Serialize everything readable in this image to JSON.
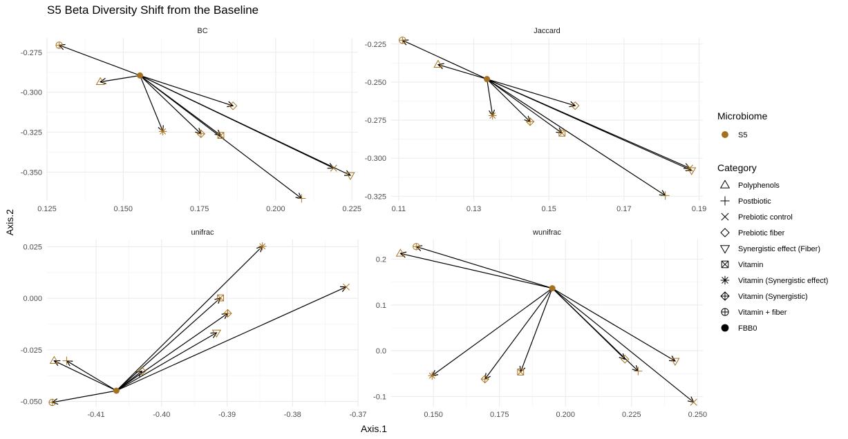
{
  "title": "S5 Beta Diversity Shift from the Baseline",
  "xlabel": "Axis.1",
  "ylabel": "Axis.2",
  "colors": {
    "s5": "#A6711F",
    "grid_major": "#EBEBEB",
    "grid_minor": "#F4F4F4",
    "arrow": "#000000"
  },
  "legend": {
    "microbiome_title": "Microbiome",
    "microbiome_items": [
      {
        "label": "S5",
        "shape": "filled-circle"
      }
    ],
    "category_title": "Category",
    "category_items": [
      {
        "label": "Polyphenols",
        "shape": "triangle-up"
      },
      {
        "label": "Postbiotic",
        "shape": "plus"
      },
      {
        "label": "Prebiotic control",
        "shape": "cross"
      },
      {
        "label": "Prebiotic fiber",
        "shape": "diamond"
      },
      {
        "label": "Synergistic effect (Fiber)",
        "shape": "triangle-down"
      },
      {
        "label": "Vitamin",
        "shape": "square-cross"
      },
      {
        "label": "Vitamin (Synergistic effect)",
        "shape": "asterisk"
      },
      {
        "label": "Vitamin (Synergistic)",
        "shape": "diamond-plus"
      },
      {
        "label": "Vitamin + fiber",
        "shape": "circle-plus"
      },
      {
        "label": "FBB0",
        "shape": "filled-circle"
      }
    ]
  },
  "chart_data": [
    {
      "type": "scatter",
      "title": "BC",
      "xlim": [
        0.125,
        0.227
      ],
      "ylim": [
        -0.368,
        -0.266
      ],
      "xticks": [
        0.125,
        0.15,
        0.175,
        0.2,
        0.225
      ],
      "xtick_labels": [
        "0.125",
        "0.150",
        "0.175",
        "0.200",
        "0.225"
      ],
      "yticks": [
        -0.275,
        -0.3,
        -0.325,
        -0.35
      ],
      "ytick_labels": [
        "-0.275",
        "-0.300",
        "-0.325",
        "-0.350"
      ],
      "baseline": {
        "x": 0.1555,
        "y": -0.2895
      },
      "points": [
        {
          "category": "Vitamin + fiber",
          "x": 0.129,
          "y": -0.2705
        },
        {
          "category": "Polyphenols",
          "x": 0.1425,
          "y": -0.2935
        },
        {
          "category": "Vitamin (Synergistic effect)",
          "x": 0.163,
          "y": -0.3245
        },
        {
          "category": "Vitamin (Synergistic)",
          "x": 0.1755,
          "y": -0.326
        },
        {
          "category": "Vitamin",
          "x": 0.182,
          "y": -0.327
        },
        {
          "category": "Prebiotic fiber",
          "x": 0.186,
          "y": -0.3085
        },
        {
          "category": "Postbiotic",
          "x": 0.2085,
          "y": -0.3665
        },
        {
          "category": "Prebiotic control",
          "x": 0.219,
          "y": -0.3475
        },
        {
          "category": "Synergistic effect (Fiber)",
          "x": 0.2245,
          "y": -0.352
        }
      ]
    },
    {
      "type": "scatter",
      "title": "Jaccard",
      "xlim": [
        0.108,
        0.191
      ],
      "ylim": [
        -0.328,
        -0.221
      ],
      "xticks": [
        0.11,
        0.13,
        0.15,
        0.17,
        0.19
      ],
      "xtick_labels": [
        "0.11",
        "0.13",
        "0.15",
        "0.17",
        "0.19"
      ],
      "yticks": [
        -0.225,
        -0.25,
        -0.275,
        -0.3,
        -0.325
      ],
      "ytick_labels": [
        "-0.225",
        "-0.250",
        "-0.275",
        "-0.300",
        "-0.325"
      ],
      "baseline": {
        "x": 0.1335,
        "y": -0.248
      },
      "points": [
        {
          "category": "Vitamin + fiber",
          "x": 0.111,
          "y": -0.2225
        },
        {
          "category": "Polyphenols",
          "x": 0.1205,
          "y": -0.2385
        },
        {
          "category": "Vitamin (Synergistic effect)",
          "x": 0.135,
          "y": -0.272
        },
        {
          "category": "Vitamin (Synergistic)",
          "x": 0.145,
          "y": -0.276
        },
        {
          "category": "Vitamin",
          "x": 0.1535,
          "y": -0.2835
        },
        {
          "category": "Prebiotic fiber",
          "x": 0.157,
          "y": -0.2655
        },
        {
          "category": "Postbiotic",
          "x": 0.181,
          "y": -0.3245
        },
        {
          "category": "Prebiotic control",
          "x": 0.1875,
          "y": -0.3065
        },
        {
          "category": "Synergistic effect (Fiber)",
          "x": 0.188,
          "y": -0.308
        }
      ]
    },
    {
      "type": "scatter",
      "title": "unifrac",
      "xlim": [
        -0.4175,
        -0.37
      ],
      "ylim": [
        -0.0525,
        0.0285
      ],
      "xticks": [
        -0.41,
        -0.4,
        -0.39,
        -0.38,
        -0.37
      ],
      "xtick_labels": [
        "-0.41",
        "-0.40",
        "-0.39",
        "-0.38",
        "-0.37"
      ],
      "yticks": [
        0.025,
        0.0,
        -0.025,
        -0.05
      ],
      "ytick_labels": [
        "0.025",
        "0.000",
        "-0.025",
        "-0.050"
      ],
      "baseline": {
        "x": -0.4069,
        "y": -0.0448
      },
      "points": [
        {
          "category": "Vitamin + fiber",
          "x": -0.4167,
          "y": -0.0505
        },
        {
          "category": "Polyphenols",
          "x": -0.4164,
          "y": -0.0303
        },
        {
          "category": "Postbiotic",
          "x": -0.4145,
          "y": -0.0303
        },
        {
          "category": "Vitamin (Synergistic effect)",
          "x": -0.3846,
          "y": 0.0252
        },
        {
          "category": "Vitamin",
          "x": -0.391,
          "y": 0.0002
        },
        {
          "category": "Vitamin (Synergistic)",
          "x": -0.3899,
          "y": -0.0073
        },
        {
          "category": "Synergistic effect (Fiber)",
          "x": -0.3916,
          "y": -0.0167
        },
        {
          "category": "Prebiotic fiber",
          "x": -0.403,
          "y": -0.0353
        },
        {
          "category": "Prebiotic control",
          "x": -0.3718,
          "y": 0.0055
        }
      ]
    },
    {
      "type": "scatter",
      "title": "wunifrac",
      "xlim": [
        0.134,
        0.252
      ],
      "ylim": [
        -0.122,
        0.243
      ],
      "xticks": [
        0.15,
        0.175,
        0.2,
        0.225,
        0.25
      ],
      "xtick_labels": [
        "0.150",
        "0.175",
        "0.200",
        "0.225",
        "0.250"
      ],
      "yticks": [
        0.2,
        0.1,
        0.0,
        -0.1
      ],
      "ytick_labels": [
        "0.2",
        "0.1",
        "0.0",
        "-0.1"
      ],
      "baseline": {
        "x": 0.195,
        "y": 0.1365
      },
      "points": [
        {
          "category": "Vitamin + fiber",
          "x": 0.1435,
          "y": 0.2275
        },
        {
          "category": "Polyphenols",
          "x": 0.1375,
          "y": 0.2125
        },
        {
          "category": "Vitamin (Synergistic effect)",
          "x": 0.1495,
          "y": -0.0545
        },
        {
          "category": "Vitamin (Synergistic)",
          "x": 0.1695,
          "y": -0.062
        },
        {
          "category": "Vitamin",
          "x": 0.183,
          "y": -0.0465
        },
        {
          "category": "Prebiotic fiber",
          "x": 0.2225,
          "y": -0.0185
        },
        {
          "category": "Postbiotic",
          "x": 0.2275,
          "y": -0.0445
        },
        {
          "category": "Synergistic effect (Fiber)",
          "x": 0.2415,
          "y": -0.0225
        },
        {
          "category": "Prebiotic control",
          "x": 0.2485,
          "y": -0.1125
        }
      ]
    }
  ]
}
